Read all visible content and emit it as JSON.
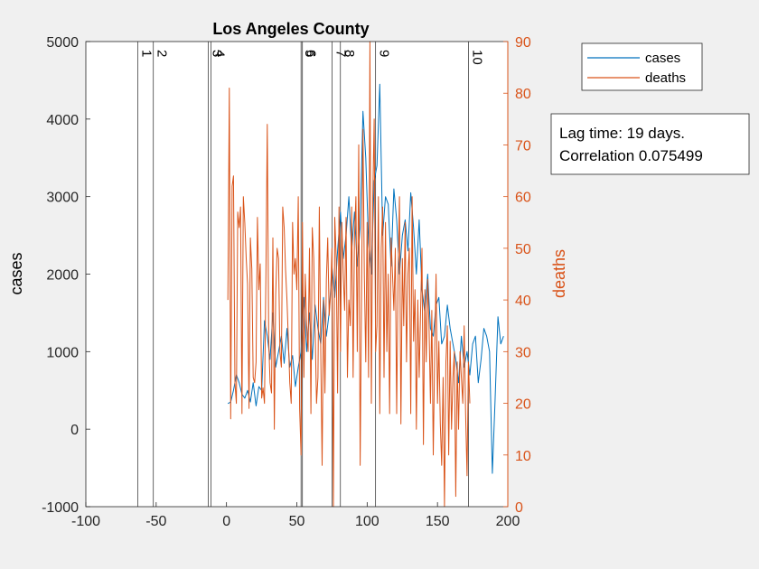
{
  "chart_data": {
    "type": "line",
    "title": "Los Angeles County",
    "xlabel": "",
    "ylabel_left": "cases",
    "ylabel_right": "deaths",
    "xlim": [
      -100,
      200
    ],
    "ylim_left": [
      -1000,
      5000
    ],
    "ylim_right": [
      0,
      90
    ],
    "xticks": [
      "-100",
      "-50",
      "0",
      "50",
      "100",
      "150",
      "200"
    ],
    "yticks_left": [
      "-1000",
      "0",
      "1000",
      "2000",
      "3000",
      "4000",
      "5000"
    ],
    "yticks_right": [
      "0",
      "10",
      "20",
      "30",
      "40",
      "50",
      "60",
      "70",
      "80",
      "90"
    ],
    "grid": false,
    "legend": {
      "placement": "top-right",
      "entries": [
        "cases",
        "deaths"
      ]
    },
    "annotation": [
      "Lag time: 19 days.",
      "Correlation 0.075499"
    ],
    "event_lines": [
      {
        "label": "1",
        "x": -63
      },
      {
        "label": "2",
        "x": -52
      },
      {
        "label": "3",
        "x": -13
      },
      {
        "label": "4",
        "x": -11
      },
      {
        "label": "5",
        "x": 53
      },
      {
        "label": "6",
        "x": 54
      },
      {
        "label": "7",
        "x": 75
      },
      {
        "label": "8",
        "x": 81
      },
      {
        "label": "9",
        "x": 106
      },
      {
        "label": "10",
        "x": 172
      }
    ],
    "series": [
      {
        "name": "cases",
        "color": "#0072BD",
        "axis": "left",
        "x": [
          1,
          3,
          5,
          7,
          9,
          11,
          13,
          15,
          17,
          19,
          21,
          23,
          25,
          27,
          29,
          31,
          33,
          35,
          37,
          39,
          41,
          43,
          45,
          47,
          49,
          51,
          53,
          55,
          57,
          59,
          61,
          63,
          65,
          67,
          69,
          71,
          73,
          75,
          77,
          79,
          81,
          83,
          85,
          87,
          89,
          91,
          93,
          95,
          97,
          99,
          101,
          103,
          105,
          107,
          109,
          111,
          113,
          115,
          117,
          119,
          121,
          123,
          125,
          127,
          129,
          131,
          133,
          135,
          137,
          139,
          141,
          143,
          145,
          147,
          149,
          151,
          153,
          155,
          157,
          159,
          161,
          163,
          165,
          167,
          169,
          171,
          173,
          175,
          177,
          179,
          181,
          183,
          185,
          187,
          189,
          191,
          193,
          195,
          197
        ],
        "values": [
          330,
          350,
          500,
          700,
          600,
          450,
          400,
          500,
          350,
          600,
          300,
          550,
          500,
          1400,
          1200,
          900,
          1500,
          800,
          1000,
          1200,
          850,
          1300,
          800,
          950,
          550,
          800,
          1000,
          1700,
          1000,
          1500,
          900,
          1600,
          1300,
          1100,
          1700,
          1200,
          1500,
          2100,
          1700,
          2300,
          2800,
          2200,
          2500,
          3000,
          2300,
          2800,
          2100,
          2600,
          4100,
          3500,
          2400,
          2000,
          3200,
          3400,
          4450,
          2500,
          3000,
          2900,
          2100,
          3100,
          2700,
          2000,
          2500,
          2700,
          2300,
          3050,
          2600,
          2000,
          2700,
          1800,
          1500,
          2000,
          1300,
          1200,
          1600,
          1700,
          1100,
          1200,
          1600,
          1300,
          1100,
          900,
          600,
          1200,
          800,
          1000,
          700,
          1100,
          1200,
          600,
          900,
          1300,
          1200,
          1000,
          -570,
          400,
          1450,
          1100,
          1200
        ]
      },
      {
        "name": "deaths",
        "color": "#D95319",
        "axis": "right",
        "x": [
          1,
          2,
          3,
          4,
          5,
          6,
          7,
          8,
          9,
          10,
          11,
          12,
          13,
          14,
          15,
          16,
          17,
          18,
          19,
          20,
          21,
          22,
          23,
          24,
          25,
          26,
          27,
          28,
          29,
          30,
          31,
          32,
          33,
          34,
          35,
          36,
          37,
          38,
          39,
          40,
          41,
          42,
          43,
          44,
          45,
          46,
          47,
          48,
          49,
          50,
          51,
          52,
          53,
          54,
          55,
          56,
          57,
          58,
          59,
          60,
          61,
          62,
          63,
          64,
          65,
          66,
          67,
          68,
          69,
          70,
          71,
          72,
          73,
          74,
          75,
          76,
          77,
          78,
          79,
          80,
          81,
          82,
          83,
          84,
          85,
          86,
          87,
          88,
          89,
          90,
          91,
          92,
          93,
          94,
          95,
          96,
          97,
          98,
          99,
          100,
          101,
          102,
          103,
          104,
          105,
          106,
          107,
          108,
          109,
          110,
          111,
          112,
          113,
          114,
          115,
          116,
          117,
          118,
          119,
          120,
          121,
          122,
          123,
          124,
          125,
          126,
          127,
          128,
          129,
          130,
          131,
          132,
          133,
          134,
          135,
          136,
          137,
          138,
          139,
          140,
          141,
          142,
          143,
          144,
          145,
          146,
          147,
          148,
          149,
          150,
          151,
          152,
          153,
          154,
          155,
          156,
          157,
          158,
          159,
          160,
          161,
          162,
          163,
          164,
          165,
          166,
          167,
          168,
          169,
          170,
          171,
          172,
          173
        ],
        "values": [
          40,
          81,
          17,
          62,
          64,
          24,
          20,
          57,
          54,
          58,
          18,
          60,
          55,
          48,
          43,
          19,
          52,
          46,
          25,
          24,
          28,
          56,
          42,
          47,
          21,
          23,
          20,
          45,
          74,
          32,
          24,
          22,
          52,
          15,
          41,
          50,
          48,
          30,
          27,
          58,
          54,
          46,
          40,
          32,
          24,
          20,
          55,
          45,
          48,
          42,
          60,
          19,
          10,
          55,
          25,
          45,
          35,
          30,
          50,
          18,
          54,
          48,
          35,
          20,
          25,
          58,
          30,
          8,
          40,
          22,
          44,
          52,
          37,
          41,
          50,
          0,
          56,
          48,
          22,
          58,
          30,
          55,
          45,
          38,
          56,
          25,
          40,
          35,
          58,
          25,
          52,
          60,
          30,
          70,
          8,
          40,
          73,
          45,
          28,
          55,
          25,
          90,
          20,
          60,
          75,
          30,
          35,
          60,
          18,
          50,
          58,
          25,
          55,
          30,
          45,
          18,
          52,
          45,
          38,
          50,
          18,
          45,
          60,
          16,
          48,
          35,
          55,
          28,
          45,
          50,
          18,
          60,
          32,
          42,
          15,
          40,
          25,
          38,
          50,
          12,
          42,
          28,
          44,
          35,
          20,
          38,
          10,
          30,
          45,
          20,
          32,
          16,
          8,
          25,
          0,
          28,
          35,
          10,
          32,
          15,
          25,
          30,
          2,
          28,
          15,
          30,
          25,
          20,
          35,
          18,
          6,
          28,
          20
        ]
      }
    ]
  }
}
